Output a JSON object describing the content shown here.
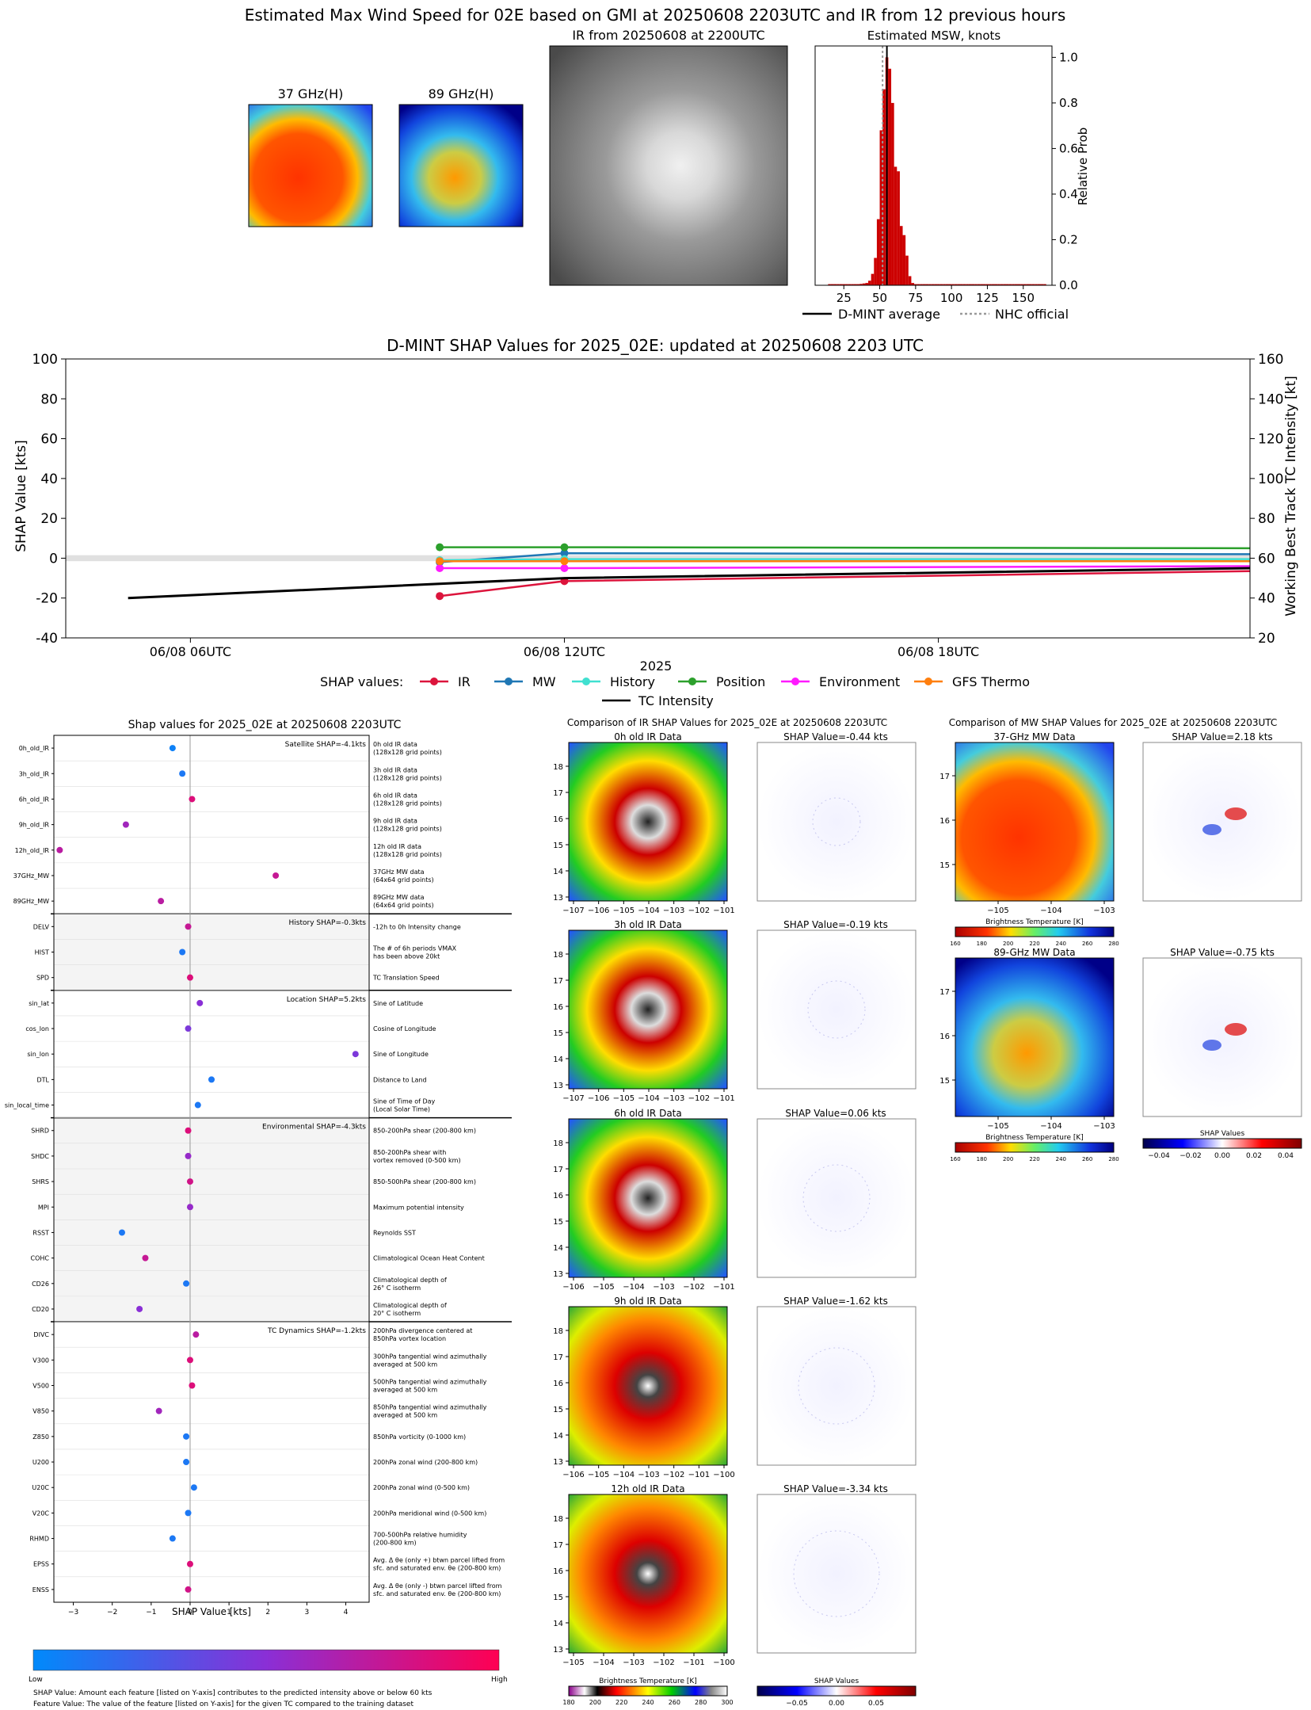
{
  "header": {
    "title": "Estimated Max Wind Speed for 02E based on GMI at 20250608 2203UTC and IR from 12 previous hours",
    "mw37_title": "37 GHz(H)",
    "mw89_title": "89 GHz(H)",
    "ir_title": "IR from 20250608 at 2200UTC",
    "msw_title": "Estimated MSW, knots"
  },
  "colors": {
    "ir": "#dc143c",
    "mw": "#1f77b4",
    "history": "#40e0d0",
    "position": "#2ca02c",
    "environment": "#ff1aff",
    "gfs": "#ff7f0e",
    "intensity": "#000000",
    "hist_bar": "#cc0000",
    "low": "#1e88e5",
    "high": "#ff0d57"
  },
  "chart_data": [
    {
      "type": "bar",
      "title": "Estimated MSW, knots",
      "ylabel": "Relative Prob",
      "xlim": [
        5,
        170
      ],
      "ylim": [
        0,
        1.05
      ],
      "xticks": [
        25,
        50,
        75,
        100,
        125,
        150
      ],
      "yticks": [
        "0.0",
        "0.2",
        "0.4",
        "0.6",
        "0.8",
        "1.0"
      ],
      "x": [
        15,
        17,
        19,
        21,
        23,
        25,
        27,
        29,
        31,
        33,
        35,
        37,
        39,
        41,
        43,
        45,
        47,
        49,
        51,
        53,
        55,
        57,
        59,
        61,
        63,
        65,
        67,
        69,
        71,
        73,
        75,
        77,
        79,
        81,
        83,
        85,
        87,
        89,
        91,
        93,
        95,
        97,
        99,
        101,
        103,
        105,
        107,
        109,
        111,
        113,
        115,
        117,
        119,
        121,
        123,
        125,
        127,
        129,
        131,
        133,
        135,
        137,
        139,
        141,
        143,
        145,
        147,
        149,
        151,
        153,
        155,
        157,
        159,
        161,
        163,
        165
      ],
      "values": [
        0.005,
        0.005,
        0.005,
        0.005,
        0.005,
        0.005,
        0.005,
        0.005,
        0.005,
        0.005,
        0.005,
        0.006,
        0.008,
        0.01,
        0.02,
        0.05,
        0.12,
        0.29,
        0.68,
        0.86,
        1.0,
        0.95,
        0.8,
        0.52,
        0.5,
        0.26,
        0.22,
        0.13,
        0.04,
        0.01,
        0.005,
        0.005,
        0.005,
        0.005,
        0.005,
        0.005,
        0.005,
        0.005,
        0.005,
        0.005,
        0.005,
        0.005,
        0.005,
        0.005,
        0.005,
        0.005,
        0.005,
        0.005,
        0.005,
        0.005,
        0.005,
        0.005,
        0.005,
        0.005,
        0.005,
        0.005,
        0.005,
        0.005,
        0.005,
        0.005,
        0.005,
        0.005,
        0.005,
        0.005,
        0.005,
        0.005,
        0.005,
        0.005,
        0.005,
        0.005,
        0.005,
        0.005,
        0.005,
        0.005,
        0.005,
        0.005
      ],
      "dmint_average": 55,
      "nhc_official": 52,
      "legend": [
        "D-MINT average",
        "NHC official"
      ]
    },
    {
      "type": "line",
      "title": "D-MINT SHAP Values for 2025_02E: updated at 20250608 2203 UTC",
      "xlabel": "2025",
      "ylabel": "SHAP Value [kts]",
      "y2label": "Working Best Track TC Intensity [kt]",
      "ylim": [
        -40,
        100
      ],
      "y2lim": [
        20,
        160
      ],
      "yticks": [
        -40,
        -20,
        0,
        20,
        40,
        60,
        80,
        100
      ],
      "y2ticks": [
        20,
        40,
        60,
        80,
        100,
        120,
        140,
        160
      ],
      "xlim_hours": [
        4,
        23
      ],
      "xticks": [
        {
          "h": 6,
          "label": "06/08 06UTC"
        },
        {
          "h": 12,
          "label": "06/08 12UTC"
        },
        {
          "h": 18,
          "label": "06/08 18UTC"
        }
      ],
      "legend_prefix": "SHAP values:",
      "series": [
        {
          "name": "IR",
          "color": "#dc143c",
          "hours": [
            10,
            12,
            23
          ],
          "values": [
            -19,
            -11.5,
            -6.5
          ]
        },
        {
          "name": "MW",
          "color": "#1f77b4",
          "hours": [
            10,
            12,
            23
          ],
          "values": [
            -2,
            2.5,
            2
          ]
        },
        {
          "name": "History",
          "color": "#40e0d0",
          "hours": [
            10,
            12,
            23
          ],
          "values": [
            -1,
            -0.5,
            -0.5
          ]
        },
        {
          "name": "Position",
          "color": "#2ca02c",
          "hours": [
            10,
            12,
            23
          ],
          "values": [
            5.5,
            5.5,
            5
          ]
        },
        {
          "name": "Environment",
          "color": "#ff1aff",
          "hours": [
            10,
            12,
            23
          ],
          "values": [
            -5,
            -5,
            -4
          ]
        },
        {
          "name": "GFS Thermo",
          "color": "#ff7f0e",
          "hours": [
            10,
            12,
            23
          ],
          "values": [
            -1.5,
            -1.5,
            -1.5
          ]
        }
      ],
      "intensity": {
        "name": "TC Intensity",
        "hours": [
          5,
          12,
          23
        ],
        "values": [
          40,
          50,
          55
        ]
      }
    },
    {
      "type": "scatter",
      "title": "Shap values for 2025_02E at 20250608 2203UTC",
      "xlabel": "SHAP Value [kts]",
      "xlim": [
        -3.5,
        4.6
      ],
      "xticks": [
        -3,
        -2,
        -1,
        0,
        1,
        2,
        3,
        4
      ],
      "groups": [
        {
          "label": "Satellite SHAP=-4.1kts",
          "shaded": false,
          "rows": [
            0,
            6
          ]
        },
        {
          "label": "History SHAP=-0.3kts",
          "shaded": true,
          "rows": [
            7,
            9
          ]
        },
        {
          "label": "Location SHAP=5.2kts",
          "shaded": false,
          "rows": [
            10,
            14
          ]
        },
        {
          "label": "Environmental SHAP=-4.3kts",
          "shaded": true,
          "rows": [
            15,
            22
          ]
        },
        {
          "label": "TC Dynamics SHAP=-1.2kts",
          "shaded": false,
          "rows": [
            23,
            33
          ]
        }
      ],
      "features": [
        {
          "name": "0h_old_IR",
          "value": -0.45,
          "fv": 0.05,
          "desc": "0h old IR data\n(128x128 grid points)"
        },
        {
          "name": "3h_old_IR",
          "value": -0.2,
          "fv": 0.1,
          "desc": "3h old IR data\n(128x128 grid points)"
        },
        {
          "name": "6h_old_IR",
          "value": 0.05,
          "fv": 0.85,
          "desc": "6h old IR data\n(128x128 grid points)"
        },
        {
          "name": "9h_old_IR",
          "value": -1.65,
          "fv": 0.6,
          "desc": "9h old IR data\n(128x128 grid points)"
        },
        {
          "name": "12h_old_IR",
          "value": -3.35,
          "fv": 0.7,
          "desc": "12h old IR data\n(128x128 grid points)"
        },
        {
          "name": "37GHz_MW",
          "value": 2.2,
          "fv": 0.75,
          "desc": "37GHz MW data\n(64x64 grid points)"
        },
        {
          "name": "89GHz_MW",
          "value": -0.75,
          "fv": 0.7,
          "desc": "89GHz MW data\n(64x64 grid points)"
        },
        {
          "name": "DELV",
          "value": -0.05,
          "fv": 0.75,
          "desc": "-12h to 0h Intensity change"
        },
        {
          "name": "HIST",
          "value": -0.2,
          "fv": 0.1,
          "desc": "The # of 6h periods VMAX\nhas been above 20kt"
        },
        {
          "name": "SPD",
          "value": 0.0,
          "fv": 0.85,
          "desc": "TC Translation Speed"
        },
        {
          "name": "sin_lat",
          "value": 0.25,
          "fv": 0.5,
          "desc": "Sine of Latitude"
        },
        {
          "name": "cos_lon",
          "value": -0.05,
          "fv": 0.45,
          "desc": "Cosine of Longitude"
        },
        {
          "name": "sin_lon",
          "value": 4.25,
          "fv": 0.45,
          "desc": "Sine of Longitude"
        },
        {
          "name": "DTL",
          "value": 0.55,
          "fv": 0.1,
          "desc": "Distance to Land"
        },
        {
          "name": "sin_local_time",
          "value": 0.2,
          "fv": 0.1,
          "desc": "Sine of Time of Day\n(Local Solar Time)"
        },
        {
          "name": "SHRD",
          "value": -0.05,
          "fv": 0.85,
          "desc": "850-200hPa shear (200-800 km)"
        },
        {
          "name": "SHDC",
          "value": -0.05,
          "fv": 0.55,
          "desc": "850-200hPa shear with\nvortex removed (0-500 km)"
        },
        {
          "name": "SHRS",
          "value": 0.0,
          "fv": 0.8,
          "desc": "850-500hPa shear (200-800 km)"
        },
        {
          "name": "MPI",
          "value": 0.0,
          "fv": 0.55,
          "desc": "Maximum potential intensity"
        },
        {
          "name": "RSST",
          "value": -1.75,
          "fv": 0.1,
          "desc": "Reynolds SST"
        },
        {
          "name": "COHC",
          "value": -1.15,
          "fv": 0.75,
          "desc": "Climatological Ocean Heat Content"
        },
        {
          "name": "CD26",
          "value": -0.1,
          "fv": 0.1,
          "desc": "Climatological depth of\n26° C isotherm"
        },
        {
          "name": "CD20",
          "value": -1.3,
          "fv": 0.5,
          "desc": "Climatological depth of\n20° C isotherm"
        },
        {
          "name": "DIVC",
          "value": 0.15,
          "fv": 0.7,
          "desc": "200hPa divergence centered at\n850hPa vortex location"
        },
        {
          "name": "V300",
          "value": 0.0,
          "fv": 0.85,
          "desc": "300hPa tangential wind azimuthally\naveraged at 500 km"
        },
        {
          "name": "V500",
          "value": 0.05,
          "fv": 0.85,
          "desc": "500hPa tangential wind azimuthally\naveraged at 500 km"
        },
        {
          "name": "V850",
          "value": -0.8,
          "fv": 0.6,
          "desc": "850hPa tangential wind azimuthally\naveraged at 500 km"
        },
        {
          "name": "Z850",
          "value": -0.1,
          "fv": 0.1,
          "desc": "850hPa vorticity (0-1000 km)"
        },
        {
          "name": "U200",
          "value": -0.1,
          "fv": 0.1,
          "desc": "200hPa zonal wind (200-800 km)"
        },
        {
          "name": "U20C",
          "value": 0.1,
          "fv": 0.1,
          "desc": "200hPa zonal wind (0-500 km)"
        },
        {
          "name": "V20C",
          "value": -0.05,
          "fv": 0.1,
          "desc": "200hPa meridional wind (0-500 km)"
        },
        {
          "name": "RHMD",
          "value": -0.45,
          "fv": 0.1,
          "desc": "700-500hPa relative humidity\n(200-800 km)"
        },
        {
          "name": "EPSS",
          "value": 0.0,
          "fv": 0.85,
          "desc": "Avg. Δ θe (only +) btwn parcel lifted from\nsfc. and saturated env. θe (200-800 km)"
        },
        {
          "name": "ENSS",
          "value": -0.05,
          "fv": 0.8,
          "desc": "Avg. Δ θe (only -) btwn parcel lifted from\nsfc. and saturated env. θe (200-800 km)"
        }
      ]
    }
  ],
  "shap_footer": {
    "low": "Low",
    "high": "High",
    "note1": "SHAP Value: Amount each feature [listed on Y-axis] contributes to the predicted intensity above or below 60 kts",
    "note2": "Feature Value: The value of the feature [listed on Y-axis] for the given TC compared to the training dataset"
  },
  "ir_compare": {
    "title": "Comparison of IR SHAP Values for 2025_02E at 20250608 2203UTC",
    "panels": [
      {
        "title": "0h old IR Data",
        "shap": "SHAP Value=-0.44 kts",
        "xticks": [
          "−107",
          "−106",
          "−105",
          "−104",
          "−103",
          "−102",
          "−101"
        ]
      },
      {
        "title": "3h old IR Data",
        "shap": "SHAP Value=-0.19 kts",
        "xticks": [
          "−107",
          "−106",
          "−105",
          "−104",
          "−103",
          "−102",
          "−101"
        ]
      },
      {
        "title": "6h old IR Data",
        "shap": "SHAP Value=0.06 kts",
        "xticks": [
          "−106",
          "−105",
          "−104",
          "−103",
          "−102",
          "−101"
        ]
      },
      {
        "title": "9h old IR Data",
        "shap": "SHAP Value=-1.62 kts",
        "xticks": [
          "−106",
          "−105",
          "−104",
          "−103",
          "−102",
          "−101",
          "−100"
        ]
      },
      {
        "title": "12h old IR Data",
        "shap": "SHAP Value=-3.34 kts",
        "xticks": [
          "−105",
          "−104",
          "−103",
          "−102",
          "−101",
          "−100"
        ]
      }
    ],
    "yticks": [
      "18",
      "17",
      "16",
      "15",
      "14",
      "13"
    ],
    "bt_label": "Brightness Temperature [K]",
    "bt_ticks": [
      "180",
      "200",
      "220",
      "240",
      "260",
      "280",
      "300"
    ],
    "shap_label": "SHAP Values",
    "shap_ticks": [
      "−0.05",
      "0.00",
      "0.05"
    ]
  },
  "mw_compare": {
    "title": "Comparison of MW SHAP Values for 2025_02E at 20250608 2203UTC",
    "panels": [
      {
        "title": "37-GHz MW Data",
        "shap": "SHAP Value=2.18 kts"
      },
      {
        "title": "89-GHz MW Data",
        "shap": "SHAP Value=-0.75 kts"
      }
    ],
    "yticks": [
      "17",
      "16",
      "15"
    ],
    "xticks": [
      "−105",
      "−104",
      "−103"
    ],
    "bt_label": "Brightness Temperature [K]",
    "bt_ticks": [
      "160",
      "180",
      "200",
      "220",
      "240",
      "260",
      "280"
    ],
    "shap_label": "SHAP Values",
    "shap_ticks": [
      "−0.04",
      "−0.02",
      "0.00",
      "0.02",
      "0.04"
    ]
  }
}
